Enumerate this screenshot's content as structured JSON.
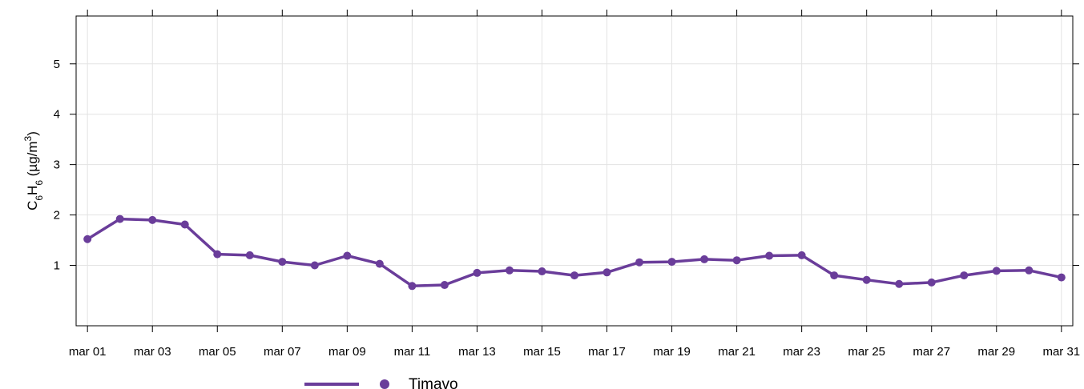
{
  "chart_data": {
    "type": "line",
    "x_tick_labels": [
      "mar 01",
      "mar 03",
      "mar 05",
      "mar 07",
      "mar 09",
      "mar 11",
      "mar 13",
      "mar 15",
      "mar 17",
      "mar 19",
      "mar 21",
      "mar 23",
      "mar 25",
      "mar 27",
      "mar 29",
      "mar 31"
    ],
    "y_tick_labels": [
      "1",
      "2",
      "3",
      "4",
      "5"
    ],
    "ylabel": {
      "prefix": "C",
      "sub1": "6",
      "mid": "H",
      "sub2": "6",
      "unit_open": " (µg/m",
      "sup": "3",
      "unit_close": ")"
    },
    "ylim": [
      -0.2,
      5.95
    ],
    "xlim": [
      0.65,
      31.35
    ],
    "grid": true,
    "legend_position": "bottom",
    "series": [
      {
        "name": "Timavo",
        "color": "#6a3d9a",
        "x": [
          1,
          2,
          3,
          4,
          5,
          6,
          7,
          8,
          9,
          10,
          11,
          12,
          13,
          14,
          15,
          16,
          17,
          18,
          19,
          20,
          21,
          22,
          23,
          24,
          25,
          26,
          27,
          28,
          29,
          30,
          31
        ],
        "values": [
          1.52,
          1.92,
          1.9,
          1.81,
          1.22,
          1.2,
          1.07,
          1.0,
          1.19,
          1.03,
          0.59,
          0.61,
          0.85,
          0.9,
          0.88,
          0.8,
          0.86,
          1.06,
          1.07,
          1.12,
          1.1,
          1.19,
          1.2,
          0.8,
          0.71,
          0.63,
          0.66,
          0.8,
          0.89,
          0.9,
          0.76
        ]
      }
    ]
  }
}
